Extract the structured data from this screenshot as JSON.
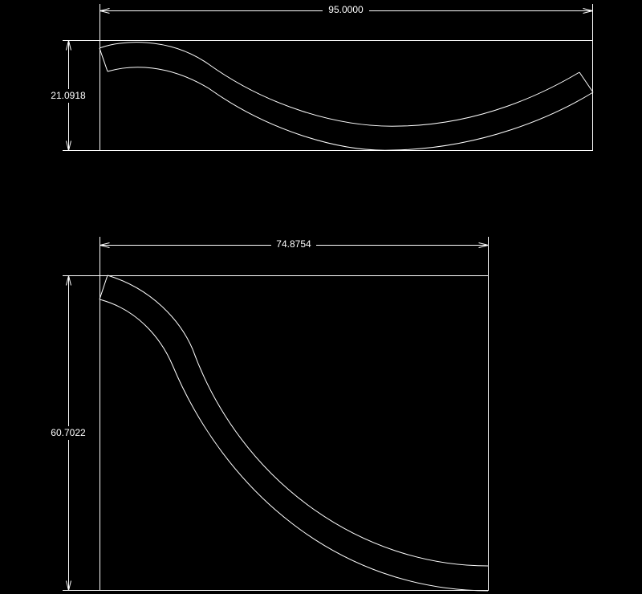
{
  "dimensions": {
    "top_width": "95.0000",
    "top_height": "21.0918",
    "bottom_width": "74.8754",
    "bottom_height": "60.7022"
  }
}
